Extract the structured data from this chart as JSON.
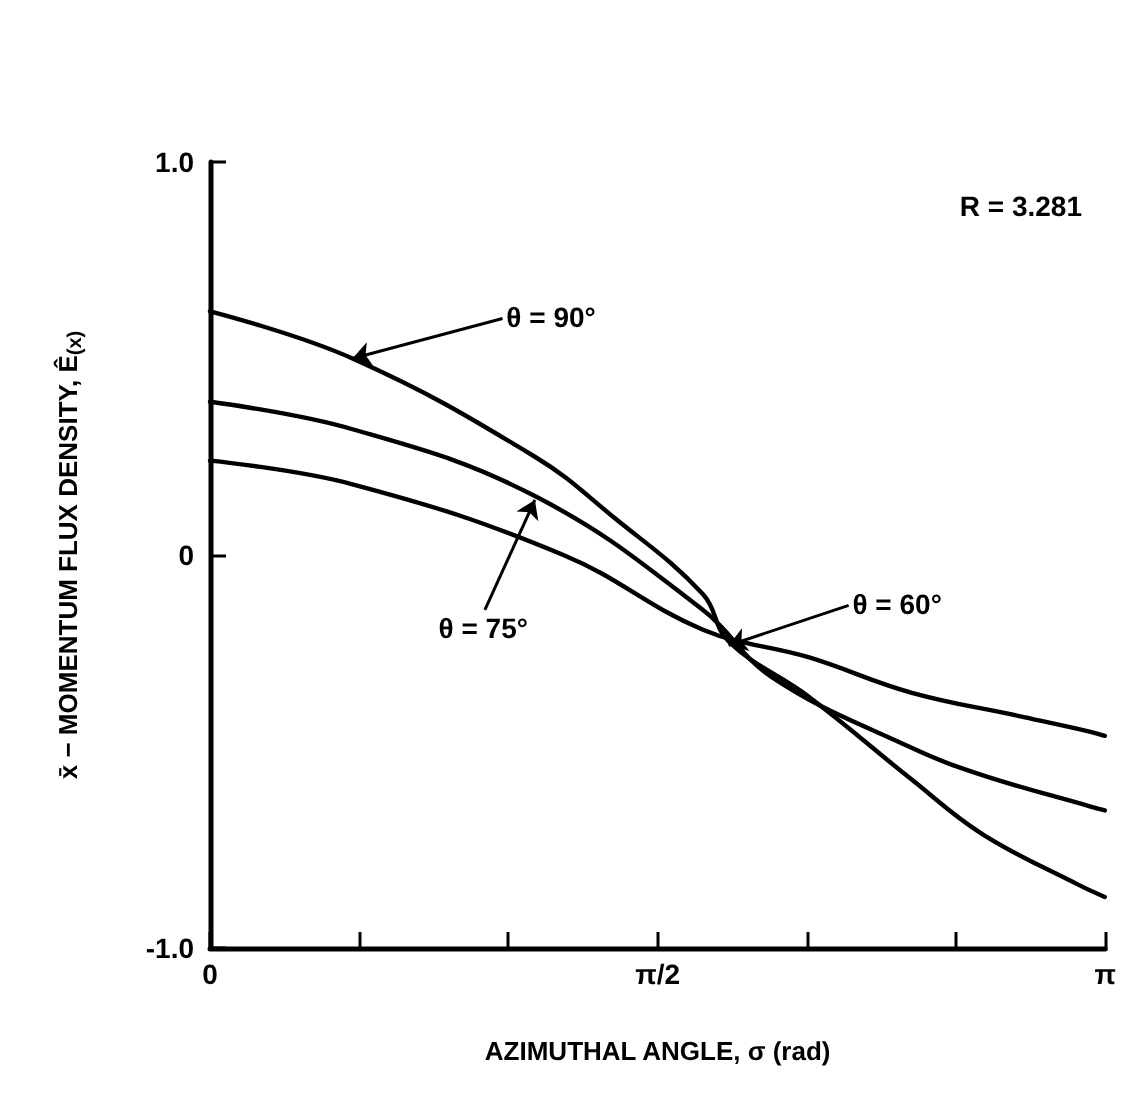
{
  "chart_data": {
    "type": "line",
    "xlabel": "AZIMUTHAL ANGLE, σ (rad)",
    "ylabel": "x̄ − MOMENTUM FLUX DENSITY, Ê$_{(x)}$",
    "xlim": [
      0,
      3.1416
    ],
    "xticks": [
      0,
      {
        "value": 0.5236,
        "label": null
      },
      {
        "value": 1.0472,
        "label": null
      },
      {
        "value": 1.5708,
        "label": "π/2"
      },
      {
        "value": 2.0944,
        "label": null
      },
      {
        "value": 2.618,
        "label": null
      },
      {
        "value": 3.1416,
        "label": "π"
      }
    ],
    "ylim": [
      -1,
      1
    ],
    "yticks": [
      {
        "value": -1,
        "label": "-1.0"
      },
      0,
      {
        "value": 1,
        "label": "1.0"
      }
    ],
    "grid": false,
    "marker": "none",
    "line_style": "solid",
    "series": [
      {
        "color": "#000000",
        "x": [
          0,
          0.5,
          1.14,
          1.41,
          1.73,
          1.82,
          2.1,
          2.46,
          2.71,
          3.05,
          3.14
        ],
        "values": [
          0.62,
          0.5,
          0.25,
          0.1,
          -0.1,
          -0.22,
          -0.36,
          -0.57,
          -0.71,
          -0.84,
          -0.87
        ]
      },
      {
        "color": "#000000",
        "x": [
          0,
          0.5,
          1.14,
          1.73,
          1.97,
          2.46,
          2.71,
          3.09,
          3.14
        ],
        "values": [
          0.39,
          0.32,
          0.15,
          -0.14,
          -0.31,
          -0.49,
          -0.56,
          -0.64,
          -0.65
        ]
      },
      {
        "color": "#000000",
        "x": [
          0,
          0.5,
          1.24,
          1.73,
          2.1,
          2.46,
          2.84,
          3.09,
          3.14
        ],
        "values": [
          0.24,
          0.18,
          0,
          -0.19,
          -0.26,
          -0.35,
          -0.41,
          -0.45,
          -0.46
        ]
      }
    ],
    "annotations": [
      "R = 3.281",
      {
        "text": "θ = 90°",
        "x": 0.5,
        "y": 0.5
      },
      {
        "text": "θ = 75°",
        "x": 1.14,
        "y": 0.14
      },
      {
        "text": "θ = 60°",
        "x": 1.82,
        "y": -0.23
      }
    ]
  }
}
